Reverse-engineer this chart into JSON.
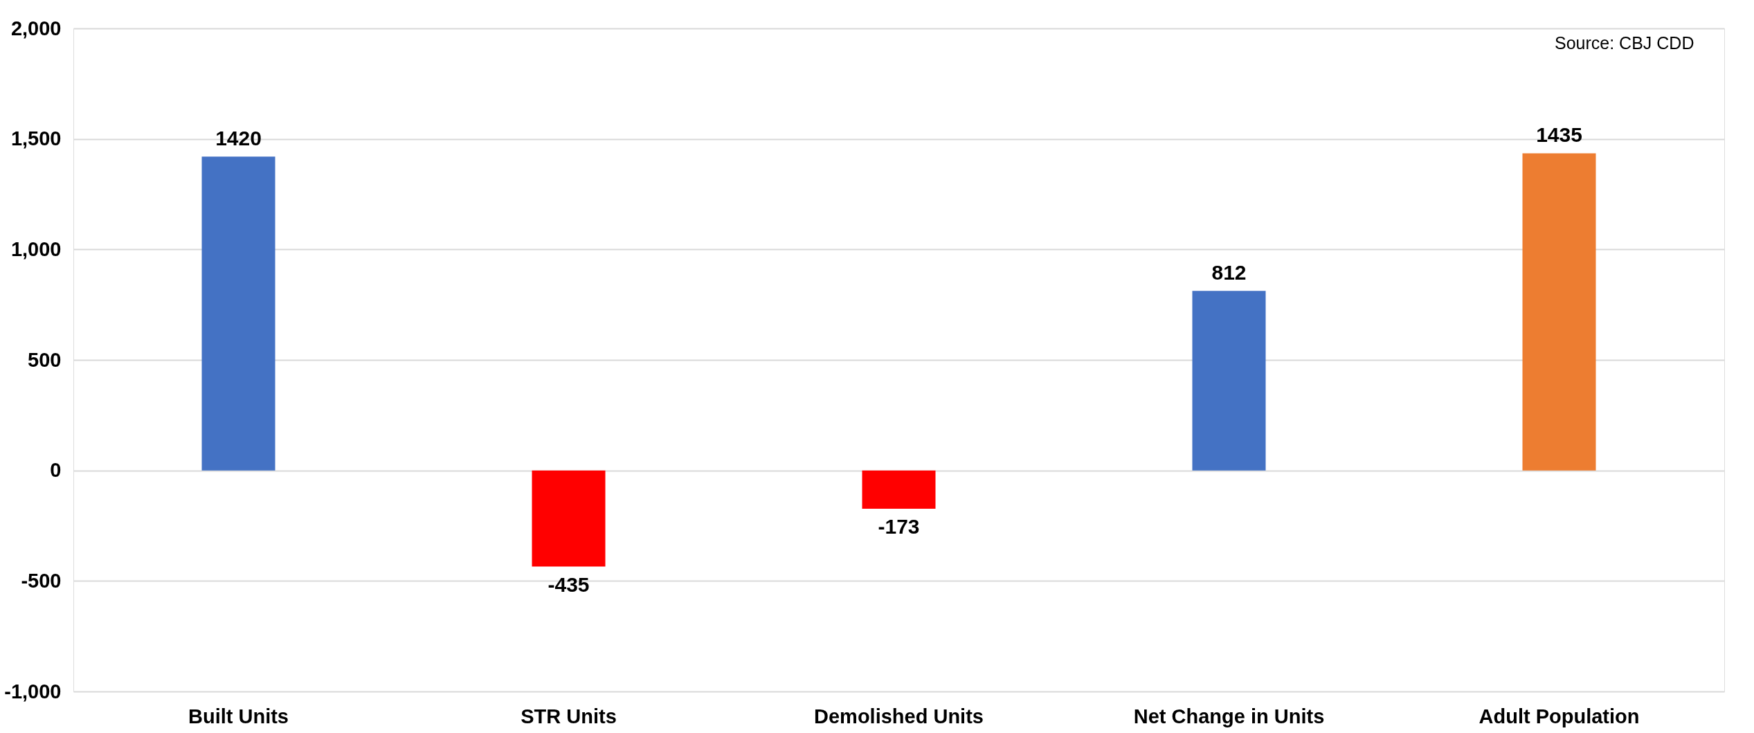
{
  "chart_data": {
    "type": "bar",
    "categories": [
      "Built Units",
      "STR Units",
      "Demolished Units",
      "Net Change in Units",
      "Adult Population"
    ],
    "values": [
      1420,
      -435,
      -173,
      812,
      1435
    ],
    "colors": [
      "#4472c4",
      "#ff0000",
      "#ff0000",
      "#4472c4",
      "#ed7d31"
    ],
    "ylim": [
      -1000,
      2000
    ],
    "yticks": [
      {
        "value": -1000,
        "label": "-1,000"
      },
      -500,
      0,
      500,
      {
        "value": 1000,
        "label": "1,000"
      },
      {
        "value": 1500,
        "label": "1,500"
      },
      {
        "value": 2000,
        "label": "2,000"
      }
    ],
    "grid": "y",
    "data_labels": true,
    "annotations": [
      "Source: CBJ CDD"
    ]
  }
}
